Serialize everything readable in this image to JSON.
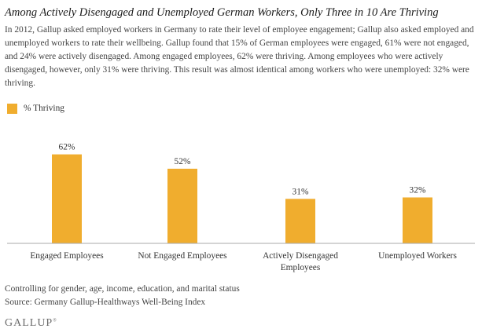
{
  "title": "Among Actively Disengaged and Unemployed German Workers, Only Three in 10 Are Thriving",
  "description": "In 2012, Gallup asked employed workers in Germany to rate their level of employee engagement; Gallup also asked employed and unemployed workers to rate their wellbeing. Gallup found that 15% of German employees were engaged, 61% were not engaged, and 24% were actively disengaged. Among engaged employees, 62% were thriving. Among employees who were actively disengaged, however, only 31% were thriving. This result was almost identical among workers who were unemployed: 32% were thriving.",
  "legend_label": "% Thriving",
  "notes": {
    "controls": "Controlling for gender, age, income, education, and marital status",
    "source": "Source: Germany Gallup-Healthways Well-Being Index"
  },
  "logo": {
    "text": "GALLUP",
    "mark": "®"
  },
  "colors": {
    "bar": "#f0ad2e",
    "axis": "#aaaaaa"
  },
  "chart_data": {
    "type": "bar",
    "categories": [
      [
        "Engaged Employees"
      ],
      [
        "Not Engaged Employees"
      ],
      [
        "Actively Disengaged",
        "Employees"
      ],
      [
        "Unemployed Workers"
      ]
    ],
    "series": [
      {
        "name": "% Thriving",
        "values": [
          62,
          52,
          31,
          32
        ],
        "labels": [
          "62%",
          "52%",
          "31%",
          "32%"
        ]
      }
    ],
    "ylim": [
      0,
      70
    ],
    "grid": false,
    "legend_position": "top-left"
  }
}
